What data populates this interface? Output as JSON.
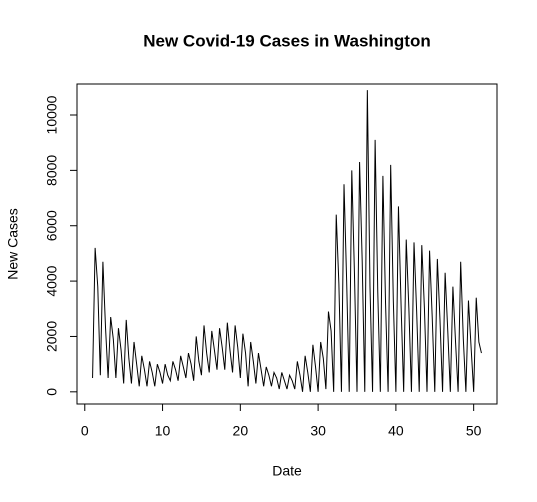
{
  "chart_data": {
    "type": "line",
    "title": "New Covid-19 Cases in Washington",
    "x_label": "Date",
    "y_label": "New Cases",
    "x": [
      1,
      1.33,
      1.67,
      2,
      2.33,
      2.67,
      3,
      3.33,
      3.67,
      4,
      4.33,
      4.67,
      5,
      5.33,
      5.67,
      6,
      6.33,
      6.67,
      7,
      7.33,
      7.67,
      8,
      8.33,
      8.67,
      9,
      9.33,
      9.67,
      10,
      10.33,
      10.67,
      11,
      11.33,
      11.67,
      12,
      12.33,
      12.67,
      13,
      13.33,
      13.67,
      14,
      14.33,
      14.67,
      15,
      15.33,
      15.67,
      16,
      16.33,
      16.67,
      17,
      17.33,
      17.67,
      18,
      18.33,
      18.67,
      19,
      19.33,
      19.67,
      20,
      20.33,
      20.67,
      21,
      21.33,
      21.67,
      22,
      22.33,
      22.67,
      23,
      23.33,
      23.67,
      24,
      24.33,
      24.67,
      25,
      25.33,
      25.67,
      26,
      26.33,
      26.67,
      27,
      27.33,
      27.67,
      28,
      28.33,
      28.67,
      29,
      29.33,
      29.67,
      30,
      30.33,
      30.67,
      31,
      31.33,
      31.67,
      32,
      32.33,
      32.67,
      33,
      33.33,
      33.67,
      34,
      34.33,
      34.67,
      35,
      35.33,
      35.67,
      36,
      36.33,
      36.67,
      37,
      37.33,
      37.67,
      38,
      38.33,
      38.67,
      39,
      39.33,
      39.67,
      40,
      40.33,
      40.67,
      41,
      41.33,
      41.67,
      42,
      42.33,
      42.67,
      43,
      43.33,
      43.67,
      44,
      44.33,
      44.67,
      45,
      45.33,
      45.67,
      46,
      46.33,
      46.67,
      47,
      47.33,
      47.67,
      48,
      48.33,
      48.67,
      49,
      49.33,
      49.67,
      50,
      50.33,
      50.67,
      51
    ],
    "values": [
      500,
      5200,
      3800,
      600,
      4700,
      2300,
      500,
      2700,
      1900,
      500,
      2300,
      1500,
      300,
      2600,
      1200,
      300,
      1800,
      1000,
      200,
      1300,
      800,
      200,
      1100,
      700,
      200,
      1000,
      700,
      300,
      1000,
      600,
      400,
      1100,
      800,
      400,
      1300,
      900,
      500,
      1400,
      1000,
      400,
      2000,
      1100,
      600,
      2400,
      1400,
      700,
      2200,
      1500,
      800,
      2300,
      1600,
      800,
      2500,
      1500,
      700,
      2400,
      1600,
      500,
      2100,
      1400,
      200,
      1800,
      1100,
      300,
      1400,
      800,
      200,
      900,
      600,
      200,
      700,
      500,
      100,
      700,
      400,
      100,
      600,
      400,
      100,
      1100,
      600,
      0,
      1300,
      700,
      0,
      1700,
      900,
      0,
      1800,
      1200,
      100,
      2900,
      2200,
      0,
      6400,
      3900,
      0,
      7500,
      4000,
      0,
      8000,
      4300,
      0,
      8300,
      4700,
      0,
      10900,
      3800,
      0,
      9100,
      3600,
      0,
      7800,
      3200,
      0,
      8200,
      3300,
      0,
      6700,
      3100,
      0,
      5500,
      3000,
      0,
      5400,
      2900,
      0,
      5300,
      3000,
      0,
      5100,
      2700,
      0,
      4800,
      2600,
      0,
      4300,
      2200,
      0,
      3800,
      1800,
      0,
      4700,
      1900,
      0,
      3300,
      1600,
      0,
      3400,
      1800,
      1400
    ],
    "color": "#000000",
    "xlim": [
      -1,
      53
    ],
    "xticks": [
      0,
      10,
      20,
      30,
      40,
      50
    ],
    "ylim": [
      -440,
      11120
    ],
    "yticks": [
      0,
      2000,
      4000,
      6000,
      8000,
      10000
    ]
  }
}
